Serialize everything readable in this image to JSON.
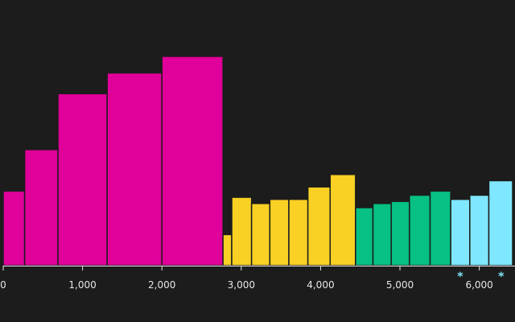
{
  "chart_data": {
    "type": "bar",
    "title": "",
    "xlabel": "",
    "ylabel": "",
    "xlim": [
      0,
      6450
    ],
    "ylim": [
      0,
      100
    ],
    "grid": false,
    "legend": "none",
    "x_ticks": [
      {
        "value": 0,
        "label": "0"
      },
      {
        "value": 1000,
        "label": "1,000"
      },
      {
        "value": 2000,
        "label": "2,000"
      },
      {
        "value": 3000,
        "label": "3,000"
      },
      {
        "value": 4000,
        "label": "4,000"
      },
      {
        "value": 5000,
        "label": "5,000"
      },
      {
        "value": 6000,
        "label": "6,000"
      }
    ],
    "series_colors": [
      "#e0009a",
      "#fad024",
      "#06c084",
      "#7fe7ff"
    ],
    "bars": [
      {
        "x0": 0,
        "x1": 270,
        "value": 36,
        "group": 0
      },
      {
        "x0": 270,
        "x1": 690,
        "value": 56,
        "group": 0
      },
      {
        "x0": 690,
        "x1": 1310,
        "value": 83,
        "group": 0
      },
      {
        "x0": 1310,
        "x1": 2000,
        "value": 93,
        "group": 0
      },
      {
        "x0": 2000,
        "x1": 2770,
        "value": 101,
        "group": 0
      },
      {
        "x0": 2770,
        "x1": 2880,
        "value": 15,
        "group": 1
      },
      {
        "x0": 2880,
        "x1": 3130,
        "value": 33,
        "group": 1
      },
      {
        "x0": 3130,
        "x1": 3360,
        "value": 30,
        "group": 1
      },
      {
        "x0": 3360,
        "x1": 3600,
        "value": 32,
        "group": 1
      },
      {
        "x0": 3600,
        "x1": 3840,
        "value": 32,
        "group": 1
      },
      {
        "x0": 3840,
        "x1": 4120,
        "value": 38,
        "group": 1
      },
      {
        "x0": 4120,
        "x1": 4440,
        "value": 44,
        "group": 1
      },
      {
        "x0": 4440,
        "x1": 4660,
        "value": 28,
        "group": 2
      },
      {
        "x0": 4660,
        "x1": 4890,
        "value": 30,
        "group": 2
      },
      {
        "x0": 4890,
        "x1": 5120,
        "value": 31,
        "group": 2
      },
      {
        "x0": 5120,
        "x1": 5380,
        "value": 34,
        "group": 2
      },
      {
        "x0": 5380,
        "x1": 5640,
        "value": 36,
        "group": 2
      },
      {
        "x0": 5640,
        "x1": 5880,
        "value": 32,
        "group": 3
      },
      {
        "x0": 5880,
        "x1": 6120,
        "value": 34,
        "group": 3
      },
      {
        "x0": 6120,
        "x1": 6420,
        "value": 41,
        "group": 3
      }
    ],
    "markers": [
      {
        "x": 5760,
        "label": "*"
      },
      {
        "x": 6275,
        "label": "*"
      }
    ]
  }
}
